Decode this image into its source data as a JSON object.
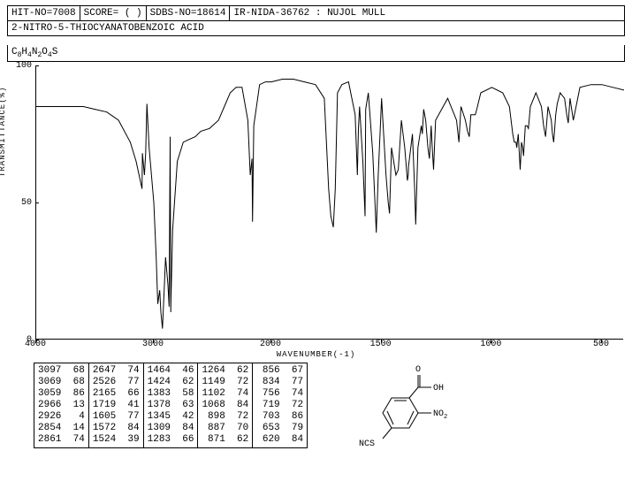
{
  "header": {
    "hit_no": "HIT-NO=7008",
    "score": "SCORE=  (  )",
    "sdbs_no": "SDBS-NO=18614",
    "ir_info": "IR-NIDA-36762 : NUJOL MULL"
  },
  "compound_name": "2-NITRO-5-THIOCYANATOBENZOIC ACID",
  "formula_html": "C<sub>8</sub>H<sub>4</sub>N<sub>2</sub>O<sub>4</sub>S",
  "chart": {
    "type": "line",
    "ylabel": "TRANSMITTANCE(%)",
    "xlabel": "WAVENUMBER(-1)",
    "ylim": [
      0,
      100
    ],
    "yticks": [
      0,
      50,
      100
    ],
    "xlim": [
      4000,
      400
    ],
    "xticks": [
      4000,
      3000,
      2000,
      1500,
      1000,
      500
    ],
    "line_color": "#000000",
    "background": "#ffffff",
    "points": [
      [
        4000,
        85
      ],
      [
        3900,
        85
      ],
      [
        3800,
        85
      ],
      [
        3700,
        85
      ],
      [
        3600,
        85
      ],
      [
        3500,
        84
      ],
      [
        3400,
        83
      ],
      [
        3300,
        80
      ],
      [
        3200,
        72
      ],
      [
        3150,
        65
      ],
      [
        3100,
        55
      ],
      [
        3097,
        68
      ],
      [
        3080,
        60
      ],
      [
        3069,
        68
      ],
      [
        3059,
        86
      ],
      [
        3040,
        70
      ],
      [
        3000,
        50
      ],
      [
        2980,
        30
      ],
      [
        2966,
        13
      ],
      [
        2950,
        18
      ],
      [
        2940,
        10
      ],
      [
        2926,
        4
      ],
      [
        2910,
        20
      ],
      [
        2900,
        30
      ],
      [
        2880,
        20
      ],
      [
        2870,
        12
      ],
      [
        2861,
        74
      ],
      [
        2856,
        10
      ],
      [
        2854,
        14
      ],
      [
        2840,
        40
      ],
      [
        2800,
        65
      ],
      [
        2750,
        72
      ],
      [
        2700,
        73
      ],
      [
        2647,
        74
      ],
      [
        2600,
        76
      ],
      [
        2526,
        77
      ],
      [
        2450,
        80
      ],
      [
        2400,
        85
      ],
      [
        2350,
        90
      ],
      [
        2300,
        92
      ],
      [
        2250,
        92
      ],
      [
        2200,
        80
      ],
      [
        2180,
        60
      ],
      [
        2165,
        66
      ],
      [
        2160,
        43
      ],
      [
        2150,
        78
      ],
      [
        2100,
        93
      ],
      [
        2050,
        94
      ],
      [
        2000,
        94
      ],
      [
        1950,
        95
      ],
      [
        1900,
        95
      ],
      [
        1850,
        94
      ],
      [
        1800,
        93
      ],
      [
        1760,
        88
      ],
      [
        1740,
        55
      ],
      [
        1730,
        45
      ],
      [
        1719,
        41
      ],
      [
        1710,
        55
      ],
      [
        1700,
        90
      ],
      [
        1680,
        93
      ],
      [
        1650,
        94
      ],
      [
        1620,
        82
      ],
      [
        1610,
        60
      ],
      [
        1605,
        77
      ],
      [
        1600,
        85
      ],
      [
        1585,
        65
      ],
      [
        1575,
        45
      ],
      [
        1572,
        84
      ],
      [
        1560,
        90
      ],
      [
        1540,
        68
      ],
      [
        1530,
        50
      ],
      [
        1524,
        39
      ],
      [
        1515,
        60
      ],
      [
        1500,
        88
      ],
      [
        1480,
        60
      ],
      [
        1470,
        50
      ],
      [
        1464,
        46
      ],
      [
        1455,
        70
      ],
      [
        1435,
        60
      ],
      [
        1424,
        62
      ],
      [
        1410,
        80
      ],
      [
        1395,
        70
      ],
      [
        1385,
        60
      ],
      [
        1383,
        58
      ],
      [
        1379,
        60
      ],
      [
        1378,
        63
      ],
      [
        1360,
        75
      ],
      [
        1350,
        55
      ],
      [
        1345,
        42
      ],
      [
        1335,
        70
      ],
      [
        1320,
        78
      ],
      [
        1315,
        75
      ],
      [
        1309,
        84
      ],
      [
        1300,
        80
      ],
      [
        1290,
        70
      ],
      [
        1283,
        66
      ],
      [
        1275,
        78
      ],
      [
        1270,
        70
      ],
      [
        1264,
        62
      ],
      [
        1255,
        80
      ],
      [
        1200,
        88
      ],
      [
        1160,
        80
      ],
      [
        1149,
        72
      ],
      [
        1140,
        85
      ],
      [
        1120,
        80
      ],
      [
        1110,
        76
      ],
      [
        1102,
        74
      ],
      [
        1095,
        82
      ],
      [
        1075,
        82
      ],
      [
        1068,
        84
      ],
      [
        1050,
        90
      ],
      [
        1000,
        92
      ],
      [
        950,
        90
      ],
      [
        920,
        85
      ],
      [
        905,
        75
      ],
      [
        898,
        72
      ],
      [
        890,
        72
      ],
      [
        887,
        70
      ],
      [
        880,
        75
      ],
      [
        871,
        62
      ],
      [
        865,
        72
      ],
      [
        860,
        70
      ],
      [
        856,
        67
      ],
      [
        848,
        78
      ],
      [
        840,
        78
      ],
      [
        834,
        77
      ],
      [
        825,
        85
      ],
      [
        800,
        90
      ],
      [
        775,
        85
      ],
      [
        765,
        78
      ],
      [
        756,
        74
      ],
      [
        745,
        85
      ],
      [
        730,
        80
      ],
      [
        725,
        75
      ],
      [
        719,
        72
      ],
      [
        710,
        82
      ],
      [
        703,
        86
      ],
      [
        690,
        90
      ],
      [
        670,
        88
      ],
      [
        660,
        82
      ],
      [
        653,
        79
      ],
      [
        645,
        88
      ],
      [
        630,
        80
      ],
      [
        620,
        84
      ],
      [
        600,
        92
      ],
      [
        550,
        93
      ],
      [
        500,
        93
      ],
      [
        450,
        92
      ],
      [
        400,
        91
      ]
    ]
  },
  "peak_table": {
    "columns": [
      [
        [
          "3097",
          "68"
        ],
        [
          "3069",
          "68"
        ],
        [
          "3059",
          "86"
        ],
        [
          "2966",
          "13"
        ],
        [
          "2926",
          " 4"
        ],
        [
          "2854",
          "14"
        ],
        [
          "2861",
          "74"
        ]
      ],
      [
        [
          "2647",
          "74"
        ],
        [
          "2526",
          "77"
        ],
        [
          "2165",
          "66"
        ],
        [
          "1719",
          "41"
        ],
        [
          "1605",
          "77"
        ],
        [
          "1572",
          "84"
        ],
        [
          "1524",
          "39"
        ]
      ],
      [
        [
          "1464",
          "46"
        ],
        [
          "1424",
          "62"
        ],
        [
          "1383",
          "58"
        ],
        [
          "1378",
          "63"
        ],
        [
          "1345",
          "42"
        ],
        [
          "1309",
          "84"
        ],
        [
          "1283",
          "66"
        ]
      ],
      [
        [
          "1264",
          "62"
        ],
        [
          "1149",
          "72"
        ],
        [
          "1102",
          "74"
        ],
        [
          "1068",
          "84"
        ],
        [
          " 898",
          "72"
        ],
        [
          " 887",
          "70"
        ],
        [
          " 871",
          "62"
        ]
      ],
      [
        [
          " 856",
          "67"
        ],
        [
          " 834",
          "77"
        ],
        [
          " 756",
          "74"
        ],
        [
          " 719",
          "72"
        ],
        [
          " 703",
          "86"
        ],
        [
          " 653",
          "79"
        ],
        [
          " 620",
          "84"
        ]
      ]
    ]
  },
  "structure": {
    "labels": {
      "cooh": "OH",
      "carbonyl": "O",
      "no2": "NO",
      "no2_sub": "2",
      "ncs": "NCS"
    }
  }
}
